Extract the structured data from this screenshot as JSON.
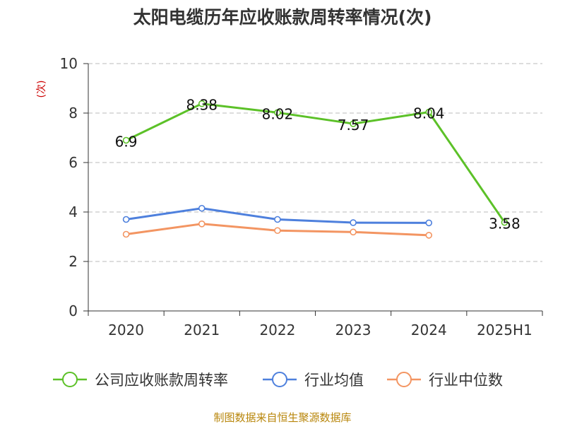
{
  "chart_data": {
    "type": "line",
    "title": "太阳电缆历年应收账款周转率情况(次)",
    "ylabel": "(次)",
    "xlabel": "",
    "categories": [
      "2020",
      "2021",
      "2022",
      "2023",
      "2024",
      "2025H1"
    ],
    "ylim": [
      0,
      10
    ],
    "yticks": [
      0,
      2,
      4,
      6,
      8,
      10
    ],
    "grid": true,
    "legend_position": "bottom",
    "series": [
      {
        "name": "公司应收账款周转率",
        "color": "#5cc128",
        "values": [
          6.9,
          8.38,
          8.02,
          7.57,
          8.04,
          3.58
        ],
        "labels": [
          "6.9",
          "8.38",
          "8.02",
          "7.57",
          "8.04",
          "3.58"
        ]
      },
      {
        "name": "行业均值",
        "color": "#4e80dd",
        "values": [
          3.7,
          4.15,
          3.7,
          3.57,
          3.56,
          null
        ]
      },
      {
        "name": "行业中位数",
        "color": "#f39562",
        "values": [
          3.1,
          3.52,
          3.25,
          3.19,
          3.06,
          null
        ]
      }
    ],
    "source": "制图数据来自恒生聚源数据库"
  }
}
